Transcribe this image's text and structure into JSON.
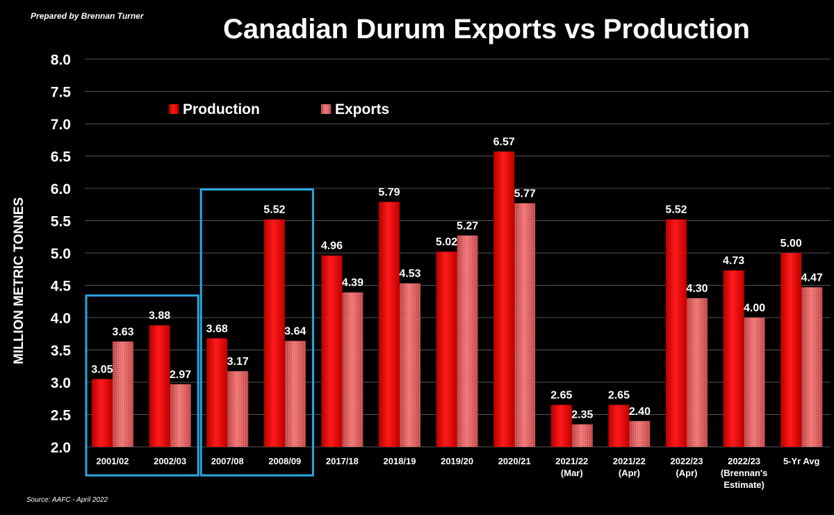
{
  "header": {
    "prepared_by": "Prepared by Brennan Turner",
    "source": "Source: AAFC - April 2022"
  },
  "colors": {
    "background": "#000000",
    "production": "#ee0000",
    "exports": "#d85050",
    "highlight": "#29a8e0",
    "grid": "#555555"
  },
  "chart_data": {
    "type": "bar",
    "title": "Canadian Durum Exports vs Production",
    "xlabel": "",
    "ylabel": "MILLION METRIC TONNES",
    "ylim": [
      2.0,
      8.0
    ],
    "yticks": [
      "2.0",
      "2.5",
      "3.0",
      "3.5",
      "4.0",
      "4.5",
      "5.0",
      "5.5",
      "6.0",
      "6.5",
      "7.0",
      "7.5",
      "8.0"
    ],
    "grid": true,
    "legend_position": "top-left",
    "categories": [
      [
        "2001/02"
      ],
      [
        "2002/03"
      ],
      [
        "2007/08"
      ],
      [
        "2008/09"
      ],
      [
        "2017/18"
      ],
      [
        "2018/19"
      ],
      [
        "2019/20"
      ],
      [
        "2020/21"
      ],
      [
        "2021/22",
        "(Mar)"
      ],
      [
        "2021/22",
        "(Apr)"
      ],
      [
        "2022/23",
        "(Apr)"
      ],
      [
        "2022/23",
        "(Brennan's",
        "Estimate)"
      ],
      [
        "5-Yr Avg"
      ]
    ],
    "series": [
      {
        "name": "Production",
        "values": [
          3.05,
          3.88,
          3.68,
          5.52,
          4.96,
          5.79,
          5.02,
          6.57,
          2.65,
          2.65,
          5.52,
          4.73,
          5.0
        ],
        "labels": [
          "3.05",
          "3.88",
          "3.68",
          "5.52",
          "4.96",
          "5.79",
          "5.02",
          "6.57",
          "2.65",
          "2.65",
          "5.52",
          "4.73",
          "5.00"
        ]
      },
      {
        "name": "Exports",
        "values": [
          3.63,
          2.97,
          3.17,
          3.64,
          4.39,
          4.53,
          5.27,
          5.77,
          2.35,
          2.4,
          4.3,
          4.0,
          4.47
        ],
        "labels": [
          "3.63",
          "2.97",
          "3.17",
          "3.64",
          "4.39",
          "4.53",
          "5.27",
          "5.77",
          "2.35",
          "2.40",
          "4.30",
          "4.00",
          "4.47"
        ]
      }
    ],
    "highlight_groups": [
      [
        0,
        1
      ],
      [
        2,
        3
      ]
    ]
  }
}
